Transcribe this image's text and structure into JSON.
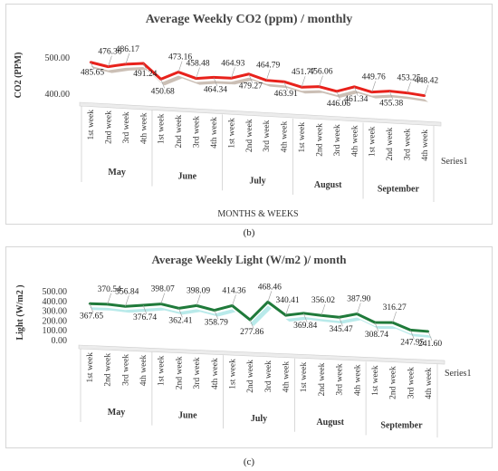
{
  "figures": [
    {
      "id": "b",
      "caption": "(b)",
      "legend": "Series1",
      "chart_data": {
        "type": "line",
        "title": "Average Weekly CO2 (ppm) / monthly",
        "ylabel": "CO2 (PPM)",
        "xlabel": "MONTHS & WEEKS",
        "ylim": [
          400,
          500
        ],
        "yticks": [
          "400.00",
          "500.00"
        ],
        "months": [
          "May",
          "June",
          "July",
          "August",
          "September"
        ],
        "weeks": [
          "1st week",
          "2nd week",
          "3rd week",
          "4th week"
        ],
        "series": [
          {
            "name": "Series1",
            "values": [
              485.65,
              476.36,
              486.17,
              491.24,
              450.68,
              473.16,
              458.48,
              464.34,
              464.93,
              479.27,
              464.79,
              463.91,
              451.77,
              456.06,
              446.06,
              461.34,
              449.76,
              455.38,
              453.25,
              448.42
            ],
            "labels": [
              "485.65",
              "476.36",
              "486.17",
              "491.24",
              "450.68",
              "473.16",
              "458.48",
              "464.34",
              "464.93",
              "479.27",
              "464.79",
              "463.91",
              "451.77",
              "456.06",
              "446.06",
              "461.34",
              "449.76",
              "455.38",
              "453.25",
              "448.42"
            ]
          }
        ],
        "grid": false
      },
      "colors": {
        "line": "#e8211b",
        "shade": "#a08a78"
      }
    },
    {
      "id": "c",
      "caption": "(c)",
      "legend": "Series1",
      "chart_data": {
        "type": "line",
        "title": "Average Weekly Light (W/m2 )/ month",
        "ylabel": "Light (W/m2 )",
        "xlabel": "",
        "ylim": [
          0,
          500
        ],
        "yticks": [
          "0.00",
          "100.00",
          "200.00",
          "300.00",
          "400.00",
          "500.00"
        ],
        "months": [
          "May",
          "June",
          "July",
          "August",
          "September"
        ],
        "weeks": [
          "1st week",
          "2nd week",
          "3rd week",
          "4th week"
        ],
        "series": [
          {
            "name": "Series1",
            "values": [
              367.65,
              370.54,
              356.84,
              376.74,
              398.07,
              362.41,
              398.09,
              358.79,
              414.36,
              277.86,
              468.46,
              340.41,
              369.84,
              356.02,
              345.47,
              387.9,
              308.74,
              316.27,
              247.95,
              241.6
            ],
            "labels": [
              "367.65",
              "370.54",
              "356.84",
              "376.74",
              "398.07",
              "362.41",
              "398.09",
              "358.79",
              "414.36",
              "277.86",
              "468.46",
              "340.41",
              "369.84",
              "356.02",
              "345.47",
              "387.90",
              "308.74",
              "316.27",
              "247.95",
              "241.60"
            ]
          }
        ],
        "grid": false
      },
      "colors": {
        "line": "#1f7a3a",
        "shade": "#7fd8d8"
      }
    }
  ]
}
